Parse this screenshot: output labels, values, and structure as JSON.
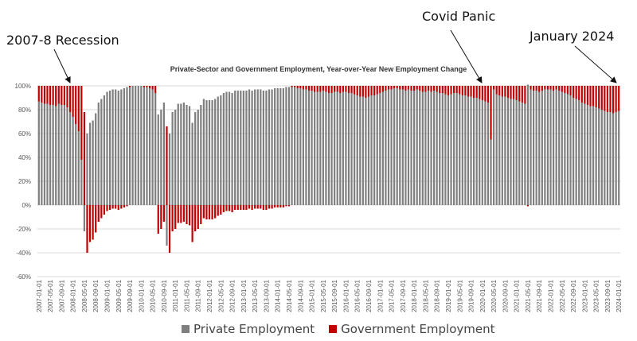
{
  "chart_data": {
    "type": "bar",
    "stacked": true,
    "title": "Private-Sector and Government Employment, Year-over-Year New Employment Change",
    "x_start_month": "2007-01",
    "x_frequency": "monthly",
    "ylim": [
      -60,
      100
    ],
    "y_ticks": [
      "100%",
      "80%",
      "60%",
      "40%",
      "20%",
      "0%",
      "-20%",
      "-40%",
      "-60%"
    ],
    "y_tick_values": [
      100,
      80,
      60,
      40,
      20,
      0,
      -20,
      -40,
      -60
    ],
    "x_tick_labels": [
      "2007-01-01",
      "2007-05-01",
      "2007-09-01",
      "2008-01-01",
      "2008-05-01",
      "2008-09-01",
      "2009-01-01",
      "2009-05-01",
      "2009-09-01",
      "2010-01-01",
      "2010-05-01",
      "2010-09-01",
      "2011-01-01",
      "2011-05-01",
      "2011-09-01",
      "2012-01-01",
      "2012-05-01",
      "2012-09-01",
      "2013-01-01",
      "2013-05-01",
      "2013-09-01",
      "2014-01-01",
      "2014-05-01",
      "2014-09-01",
      "2015-01-01",
      "2015-05-01",
      "2015-09-01",
      "2016-01-01",
      "2016-05-01",
      "2016-09-01",
      "2017-01-01",
      "2017-05-01",
      "2017-09-01",
      "2018-01-01",
      "2018-05-01",
      "2018-09-01",
      "2019-01-01",
      "2019-05-01",
      "2019-09-01",
      "2020-01-01",
      "2020-05-01",
      "2020-09-01",
      "2021-01-01",
      "2021-05-01",
      "2021-09-01",
      "2022-01-01",
      "2022-05-01",
      "2022-09-01",
      "2023-01-01",
      "2023-05-01",
      "2023-09-01",
      "2024-01-01"
    ],
    "grid": true,
    "legend_position": "bottom",
    "series": [
      {
        "name": "Private Employment",
        "color": "#7f7f7f",
        "values": [
          87,
          86,
          85,
          85,
          84,
          84,
          83,
          85,
          84,
          84,
          82,
          78,
          74,
          68,
          62,
          38,
          -22,
          60,
          69,
          71,
          77,
          86,
          89,
          92,
          95,
          96,
          97,
          97,
          96,
          97,
          98,
          99,
          99,
          100,
          100,
          100,
          100,
          99,
          99,
          98,
          97,
          94,
          76,
          80,
          86,
          -34,
          60,
          78,
          80,
          85,
          85,
          86,
          84,
          83,
          69,
          78,
          80,
          84,
          89,
          88,
          88,
          88,
          89,
          91,
          92,
          94,
          95,
          95,
          94,
          96,
          96,
          96,
          96,
          96,
          97,
          96,
          97,
          97,
          97,
          96,
          96,
          97,
          97,
          98,
          98,
          98,
          98,
          99,
          99,
          99,
          99,
          98,
          98,
          97,
          97,
          96,
          96,
          95,
          95,
          95,
          96,
          95,
          94,
          94,
          95,
          95,
          94,
          95,
          95,
          94,
          94,
          93,
          92,
          91,
          91,
          90,
          91,
          92,
          92,
          93,
          94,
          95,
          96,
          97,
          97,
          98,
          98,
          97,
          97,
          96,
          97,
          96,
          96,
          97,
          96,
          95,
          95,
          96,
          95,
          96,
          95,
          94,
          94,
          93,
          92,
          93,
          94,
          94,
          93,
          92,
          92,
          91,
          91,
          90,
          90,
          89,
          88,
          87,
          86,
          55,
          97,
          93,
          92,
          91,
          91,
          90,
          89,
          89,
          88,
          87,
          86,
          85,
          101,
          97,
          96,
          96,
          95,
          96,
          97,
          97,
          97,
          96,
          97,
          96,
          95,
          94,
          93,
          92,
          90,
          89,
          88,
          86,
          85,
          84,
          83,
          83,
          82,
          81,
          80,
          79,
          78,
          78,
          77,
          78,
          79
        ]
      },
      {
        "name": "Government Employment",
        "color": "#c00000",
        "values": [
          13,
          14,
          15,
          15,
          16,
          16,
          17,
          15,
          16,
          16,
          18,
          22,
          26,
          32,
          38,
          62,
          78,
          -40,
          -31,
          -29,
          -23,
          -14,
          -11,
          -8,
          -5,
          -4,
          -3,
          -3,
          -4,
          -3,
          -2,
          -1,
          1,
          0,
          0,
          0,
          0,
          1,
          1,
          2,
          3,
          6,
          -24,
          -20,
          -14,
          66,
          -40,
          -22,
          -20,
          -15,
          -15,
          -14,
          -16,
          -17,
          -31,
          -22,
          -20,
          -16,
          -11,
          -12,
          -12,
          -12,
          -11,
          -9,
          -8,
          -6,
          -5,
          -5,
          -6,
          -4,
          -4,
          -4,
          -4,
          -4,
          -3,
          -4,
          -3,
          -3,
          -3,
          -4,
          -4,
          -3,
          -3,
          -2,
          -2,
          -2,
          -2,
          -1,
          -1,
          1,
          1,
          2,
          2,
          3,
          3,
          4,
          4,
          5,
          5,
          5,
          4,
          5,
          6,
          6,
          5,
          5,
          6,
          5,
          5,
          6,
          6,
          7,
          8,
          9,
          9,
          10,
          9,
          8,
          8,
          7,
          6,
          5,
          4,
          3,
          3,
          2,
          2,
          3,
          3,
          4,
          3,
          4,
          4,
          3,
          4,
          5,
          5,
          4,
          5,
          4,
          5,
          6,
          6,
          7,
          8,
          7,
          6,
          6,
          7,
          8,
          8,
          9,
          9,
          10,
          10,
          11,
          12,
          13,
          14,
          45,
          3,
          7,
          8,
          9,
          9,
          10,
          11,
          11,
          12,
          13,
          14,
          15,
          -1,
          3,
          4,
          4,
          5,
          4,
          3,
          3,
          3,
          4,
          3,
          4,
          5,
          6,
          7,
          8,
          10,
          11,
          12,
          14,
          15,
          16,
          17,
          17,
          18,
          19,
          20,
          21,
          22,
          22,
          23,
          22,
          21
        ]
      }
    ],
    "annotations": [
      {
        "text": "2007-8 Recession",
        "points_to": "2008-03"
      },
      {
        "text": "Covid Panic",
        "points_to": "2020-04"
      },
      {
        "text": "January 2024",
        "points_to": "2024-01"
      }
    ]
  },
  "legend": {
    "private": "Private Employment",
    "government": "Government Employment"
  }
}
